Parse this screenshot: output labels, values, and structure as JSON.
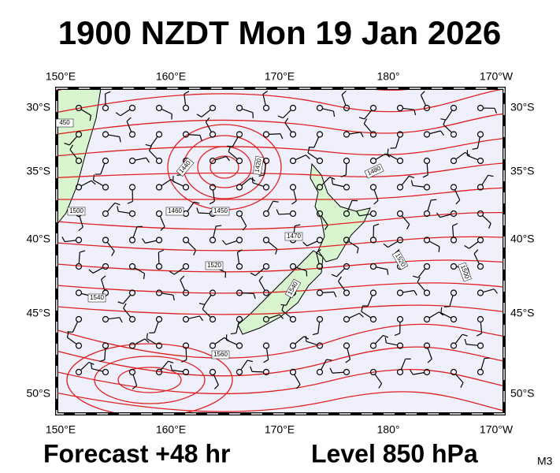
{
  "title": "1900 NZDT Mon 19 Jan 2026",
  "map": {
    "top_labels": [
      "150°E",
      "160°E",
      "170°E",
      "180°",
      "170°W"
    ],
    "bottom_labels": [
      "150°E",
      "160°E",
      "170°E",
      "180°",
      "170°W"
    ],
    "left_labels": [
      "30°S",
      "35°S",
      "40°S",
      "45°S",
      "50°S"
    ],
    "right_labels": [
      "30°S",
      "35°S",
      "40°S",
      "45°S",
      "50°S"
    ],
    "contour_labels": [
      "450",
      "1440",
      "1420",
      "1480",
      "1500",
      "1460",
      "1450",
      "1470",
      "1520",
      "1520",
      "1500",
      "1540",
      "1540",
      "1560"
    ]
  },
  "footer": {
    "forecast": "Forecast +48 hr",
    "level": "Level 850 hPa",
    "code": "M3"
  }
}
